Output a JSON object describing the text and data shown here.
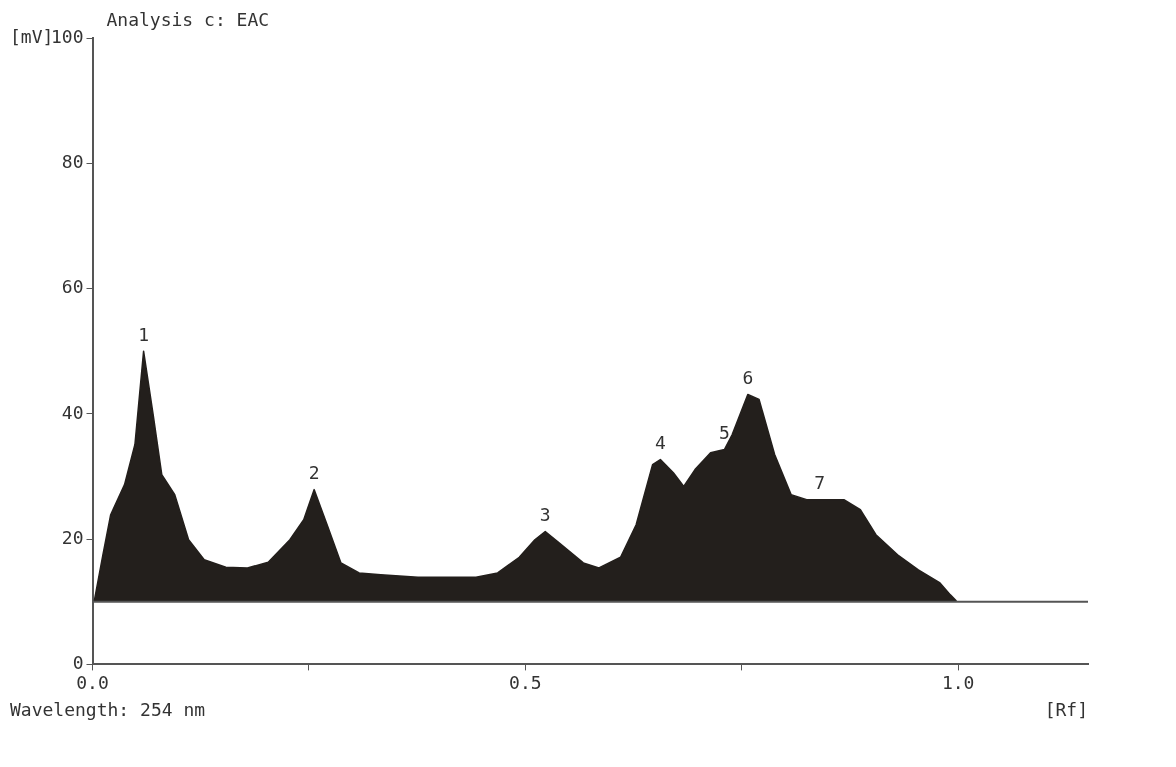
{
  "chart_data": {
    "type": "area",
    "title": "Analysis c: EAC",
    "xlabel": "[Rf]",
    "ylabel": "[mV]",
    "x": [
      0.002,
      0.012,
      0.021,
      0.037,
      0.049,
      0.059,
      0.07,
      0.08,
      0.095,
      0.111,
      0.129,
      0.154,
      0.179,
      0.203,
      0.228,
      0.244,
      0.256,
      0.271,
      0.287,
      0.308,
      0.333,
      0.376,
      0.443,
      0.468,
      0.493,
      0.511,
      0.523,
      0.539,
      0.567,
      0.585,
      0.61,
      0.628,
      0.647,
      0.656,
      0.671,
      0.683,
      0.696,
      0.714,
      0.73,
      0.739,
      0.757,
      0.77,
      0.788,
      0.807,
      0.825,
      0.868,
      0.887,
      0.905,
      0.93,
      0.954,
      0.979,
      0.991,
      0.998
    ],
    "series": [
      {
        "color": "#231f1c",
        "values": [
          10.1,
          17.5,
          23.9,
          28.7,
          35.1,
          50.0,
          39.9,
          30.3,
          27.1,
          19.9,
          16.7,
          15.5,
          15.4,
          16.3,
          19.9,
          23.1,
          27.9,
          22.3,
          16.2,
          14.6,
          14.3,
          13.9,
          13.9,
          14.6,
          17.1,
          19.9,
          21.2,
          19.4,
          16.2,
          15.4,
          17.1,
          22.3,
          31.9,
          32.7,
          30.6,
          28.4,
          31.1,
          33.8,
          34.3,
          36.7,
          43.1,
          42.3,
          33.5,
          27.1,
          26.3,
          26.3,
          24.7,
          20.7,
          17.5,
          15.1,
          13.0,
          11.1,
          10.1
        ]
      }
    ],
    "xlim": [
      0,
      1.15
    ],
    "ylim": [
      0,
      100
    ],
    "xticks": [
      {
        "value": 0,
        "label": "0.0"
      },
      {
        "value": 0.25,
        "label": null
      },
      0.5,
      {
        "value": 0.75,
        "label": null
      },
      {
        "value": 1,
        "label": "1.0"
      }
    ],
    "yticks": [
      0,
      20,
      40,
      60,
      80,
      100
    ],
    "ref_lines": [
      {
        "axis": "y",
        "value": 10,
        "color": "#555555"
      }
    ],
    "annotations": [
      {
        "text": "1",
        "x": 0.059,
        "y": 50.0
      },
      {
        "text": "2",
        "x": 0.256,
        "y": 27.9
      },
      {
        "text": "3",
        "x": 0.523,
        "y": 21.2
      },
      {
        "text": "4",
        "x": 0.656,
        "y": 32.7
      },
      {
        "text": "5",
        "x": 0.73,
        "y": 34.3
      },
      {
        "text": "6",
        "x": 0.757,
        "y": 43.1
      },
      {
        "text": "7",
        "x": 0.84,
        "y": 26.3
      },
      "Wavelength: 254 nm"
    ],
    "grid": false,
    "legend": false,
    "marker": "none",
    "line_style": "solid"
  }
}
